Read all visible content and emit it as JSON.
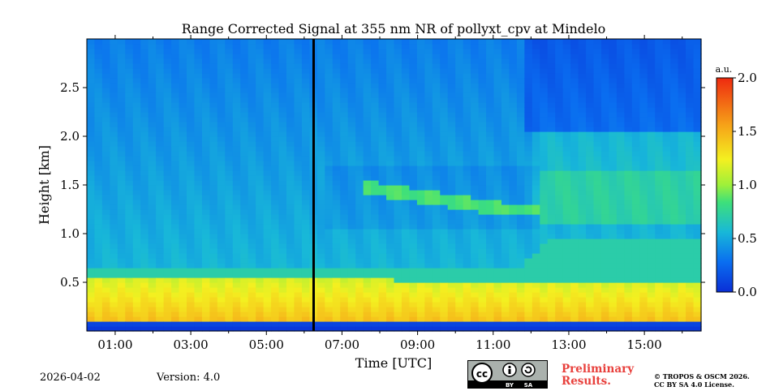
{
  "chart_data": {
    "type": "heatmap",
    "title": "Range Corrected Signal at 355 nm NR of pollyxt_cpv at Mindelo",
    "xlabel": "Time [UTC]",
    "ylabel": "Height [km]",
    "x_range_hours_utc": [
      0.0,
      16.25
    ],
    "ylim": [
      0.0,
      3.0
    ],
    "x_tick_values": [
      0.75,
      2.75,
      4.75,
      6.75,
      8.75,
      10.75,
      12.75,
      14.75
    ],
    "x_tick_labels": [
      "01:00",
      "03:00",
      "05:00",
      "07:00",
      "09:00",
      "11:00",
      "13:00",
      "15:00"
    ],
    "y_tick_values": [
      0.5,
      1.0,
      1.5,
      2.0,
      2.5
    ],
    "y_tick_labels": [
      "0.5",
      "1.0",
      "1.5",
      "2.0",
      "2.5"
    ],
    "colorbar": {
      "unit_label": "a.u.",
      "range": [
        0.0,
        2.0
      ],
      "tick_values": [
        0.0,
        0.5,
        1.0,
        1.5,
        2.0
      ],
      "tick_labels": [
        "0.0",
        "0.5",
        "1.0",
        "1.5",
        "2.0"
      ],
      "colormap": "jet"
    },
    "data_gap_time_hours": 6.0,
    "layers": [
      {
        "name": "aerosol-boundary-layer",
        "top_km_start": 0.55,
        "top_km_end": 0.5,
        "value": 1.5
      },
      {
        "name": "elevated-aerosol-layer",
        "base_km_start": 0.65,
        "base_km_after_12h": 0.95,
        "value": 0.7
      },
      {
        "name": "upper-aerosol-band",
        "height_km_start_7h": 1.5,
        "height_km_end": 1.25,
        "value": 0.85
      }
    ]
  },
  "footer": {
    "date": "2026-04-02",
    "version": "Version: 4.0",
    "license_badge": {
      "cc": "cc",
      "by": "BY",
      "sa": "SA"
    },
    "preliminary_line1": "Preliminary",
    "preliminary_line2": "Results.",
    "copyright_line1": "© TROPOS & OSCM 2026.",
    "copyright_line2": "CC BY SA 4.0 License."
  },
  "colors": {
    "gap_line": "#000000",
    "preliminary": "#e8403c",
    "badge_bg": "#aab1ad"
  }
}
